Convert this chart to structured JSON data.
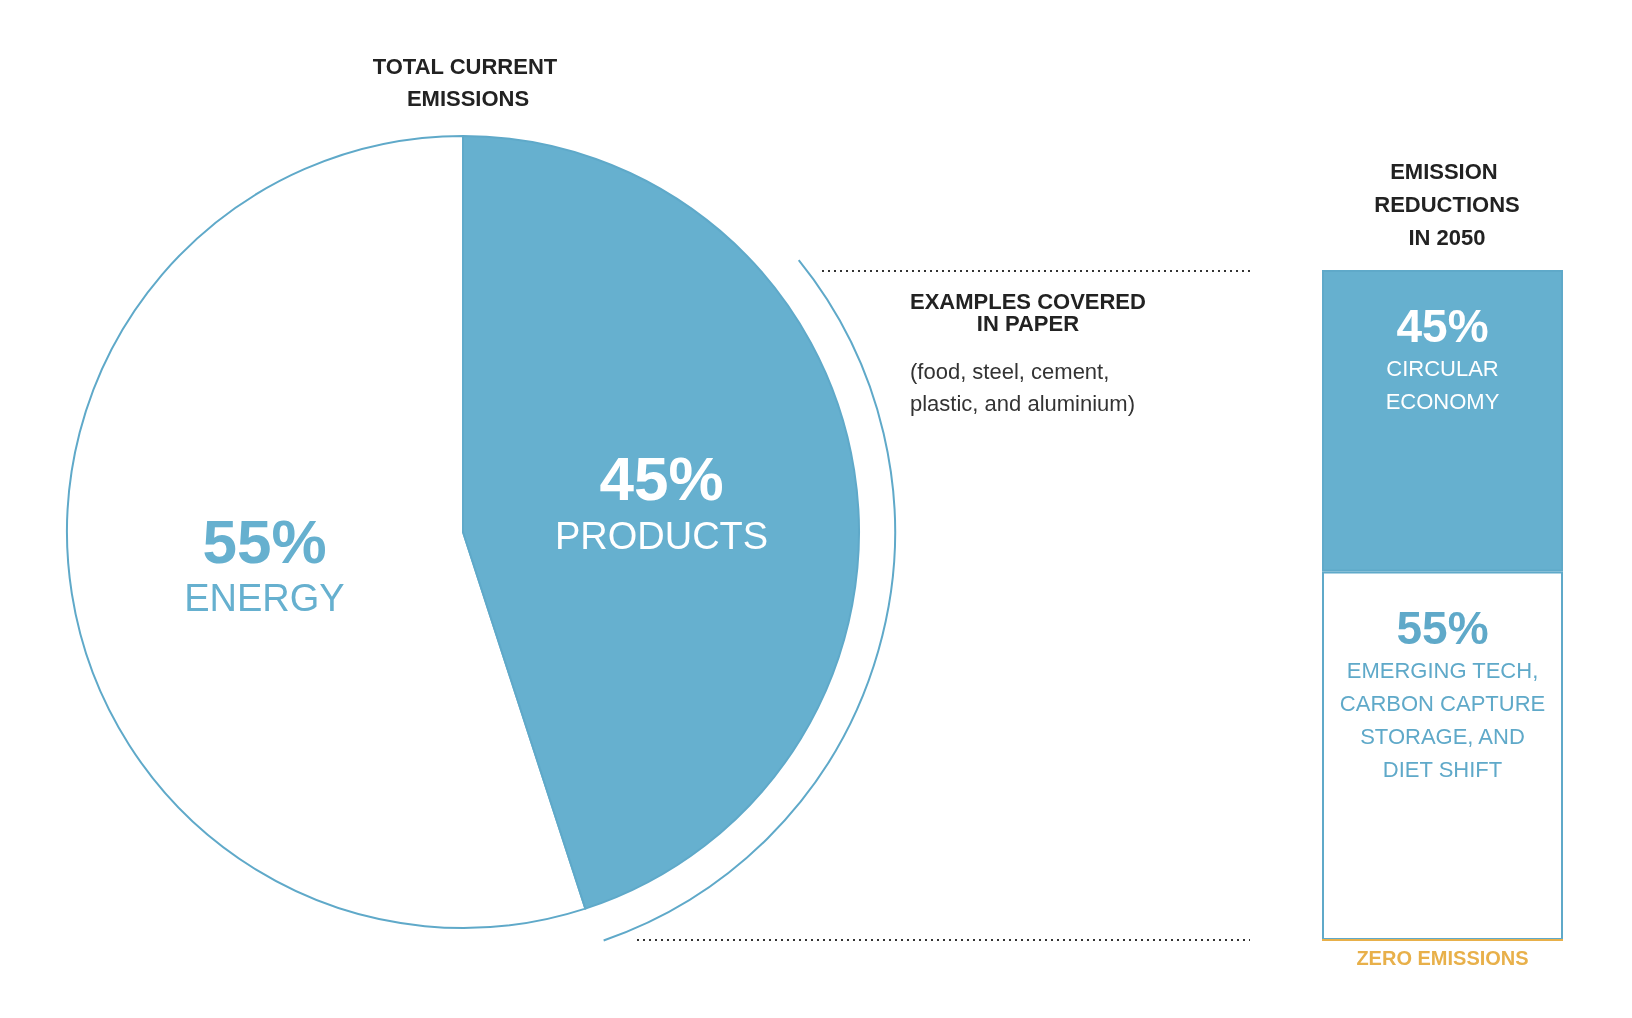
{
  "chart_data": [
    {
      "type": "pie",
      "title": "TOTAL CURRENT EMISSIONS",
      "categories": [
        "ENERGY",
        "PRODUCTS"
      ],
      "values": [
        55,
        45
      ],
      "colors": [
        "#ffffff",
        "#66b0cf"
      ],
      "value_labels": [
        "55%",
        "45%"
      ],
      "legend": false,
      "annotations": [
        "EXAMPLES COVERED\nIN PAPER",
        "(food, steel, cement,\nplastic, and aluminium)"
      ]
    },
    {
      "type": "bar",
      "stacked": true,
      "title": "EMISSION REDUCTIONS\nIN 2050",
      "categories": [
        null
      ],
      "legend": false,
      "tick_labels": false,
      "series": [
        {
          "name": "EMERGING TECH, CARBON CAPTURE STORAGE, AND DIET SHIFT",
          "color": "#ffffff",
          "values": [
            55
          ],
          "value_labels": [
            "55%"
          ]
        },
        {
          "name": "CIRCULAR ECONOMY",
          "color": "#66b0cf",
          "values": [
            45
          ],
          "value_labels": [
            "45%"
          ]
        }
      ],
      "ref_lines": [
        {
          "axis": "y",
          "value": 0,
          "label": "ZERO EMISSIONS",
          "color": "#e8b04a"
        }
      ]
    }
  ]
}
